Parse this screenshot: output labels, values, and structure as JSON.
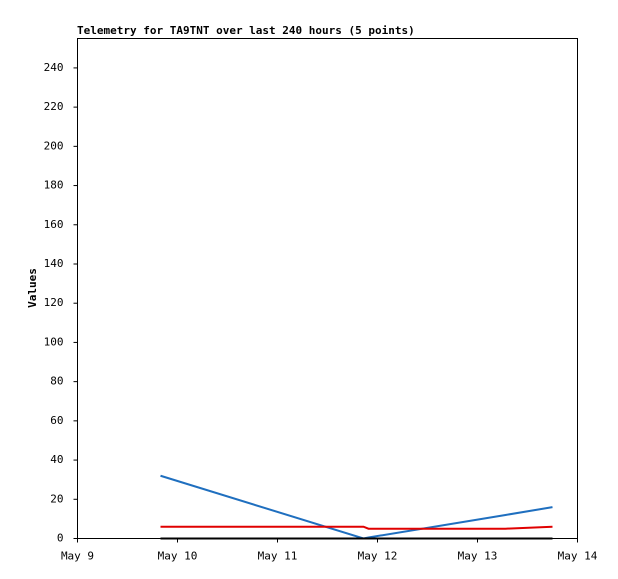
{
  "chart_data": {
    "type": "line",
    "title": "Telemetry for TA9TNT over last 240 hours (5 points)",
    "y_label": "Values",
    "x": [
      9.83,
      11.86,
      11.91,
      13.28,
      13.75
    ],
    "series": [
      {
        "color": "#1f6fbf",
        "values": [
          32,
          0,
          0.5,
          12,
          16
        ]
      },
      {
        "color": "#e00000",
        "values": [
          6,
          6,
          5,
          5,
          6
        ]
      },
      {
        "color": "#000000",
        "values": [
          0,
          0,
          0,
          0,
          0
        ]
      }
    ],
    "xlim": [
      9,
      14
    ],
    "xticks": [
      {
        "value": 9,
        "label": "May 9"
      },
      {
        "value": 10,
        "label": "May 10"
      },
      {
        "value": 11,
        "label": "May 11"
      },
      {
        "value": 12,
        "label": "May 12"
      },
      {
        "value": 13,
        "label": "May 13"
      },
      {
        "value": 14,
        "label": "May 14"
      }
    ],
    "ylim": [
      0,
      255
    ],
    "yticks": [
      0,
      20,
      40,
      60,
      80,
      100,
      120,
      140,
      160,
      180,
      200,
      220,
      240
    ],
    "grid": false
  }
}
